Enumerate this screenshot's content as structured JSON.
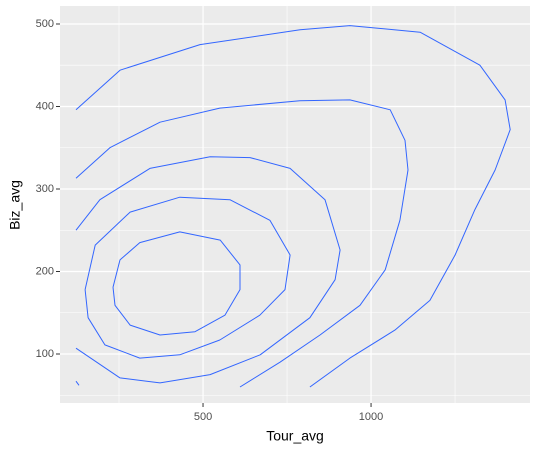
{
  "chart_data": {
    "type": "contour",
    "x_label": "Tour_avg",
    "y_label": "Biz_avg",
    "xlim": [
      74.4,
      1473
    ],
    "ylim": [
      40.6,
      521.8
    ],
    "xticks": [
      500,
      1000
    ],
    "yticks": [
      100,
      200,
      300,
      400,
      500
    ],
    "grid": true,
    "color": "#3366ff",
    "series": [
      {
        "x": [
          232,
          253,
          312,
          431,
          551,
          610,
          610,
          565,
          476,
          372,
          283,
          238,
          232
        ],
        "y": [
          181,
          214,
          235,
          248,
          238,
          208,
          178,
          147,
          127,
          123,
          135,
          159,
          181
        ]
      },
      {
        "x": [
          149,
          179,
          283,
          431,
          580,
          699,
          759,
          744,
          669,
          550,
          431,
          312,
          208,
          158,
          149
        ],
        "y": [
          178,
          232,
          272,
          290,
          287,
          262,
          220,
          178,
          147,
          117,
          99,
          95,
          111,
          144,
          178
        ]
      },
      {
        "x": [
          122,
          253,
          372,
          521,
          670,
          818,
          893,
          908,
          863,
          759,
          640,
          521,
          342,
          193,
          122
        ],
        "y": [
          107,
          71,
          65,
          75,
          99,
          144,
          190,
          226,
          287,
          325,
          338,
          339,
          325,
          287,
          250
        ]
      },
      {
        "x": [
          122,
          223,
          372,
          550,
          788,
          937,
          1057,
          1101,
          1110,
          1086,
          1042,
          967,
          848,
          729,
          610
        ],
        "y": [
          313,
          350,
          381,
          398,
          407,
          408,
          396,
          359,
          323,
          262,
          202,
          159,
          123,
          90,
          60
        ]
      },
      {
        "x": [
          122,
          253,
          491,
          789,
          937,
          1146,
          1324,
          1399,
          1414,
          1369,
          1309,
          1250,
          1175,
          1071,
          937,
          818
        ],
        "y": [
          396,
          444,
          475,
          493,
          498,
          490,
          450,
          408,
          372,
          323,
          275,
          220,
          165,
          129,
          95,
          60
        ]
      },
      {
        "x": [
          122,
          131
        ],
        "y": [
          67,
          62
        ]
      }
    ]
  }
}
